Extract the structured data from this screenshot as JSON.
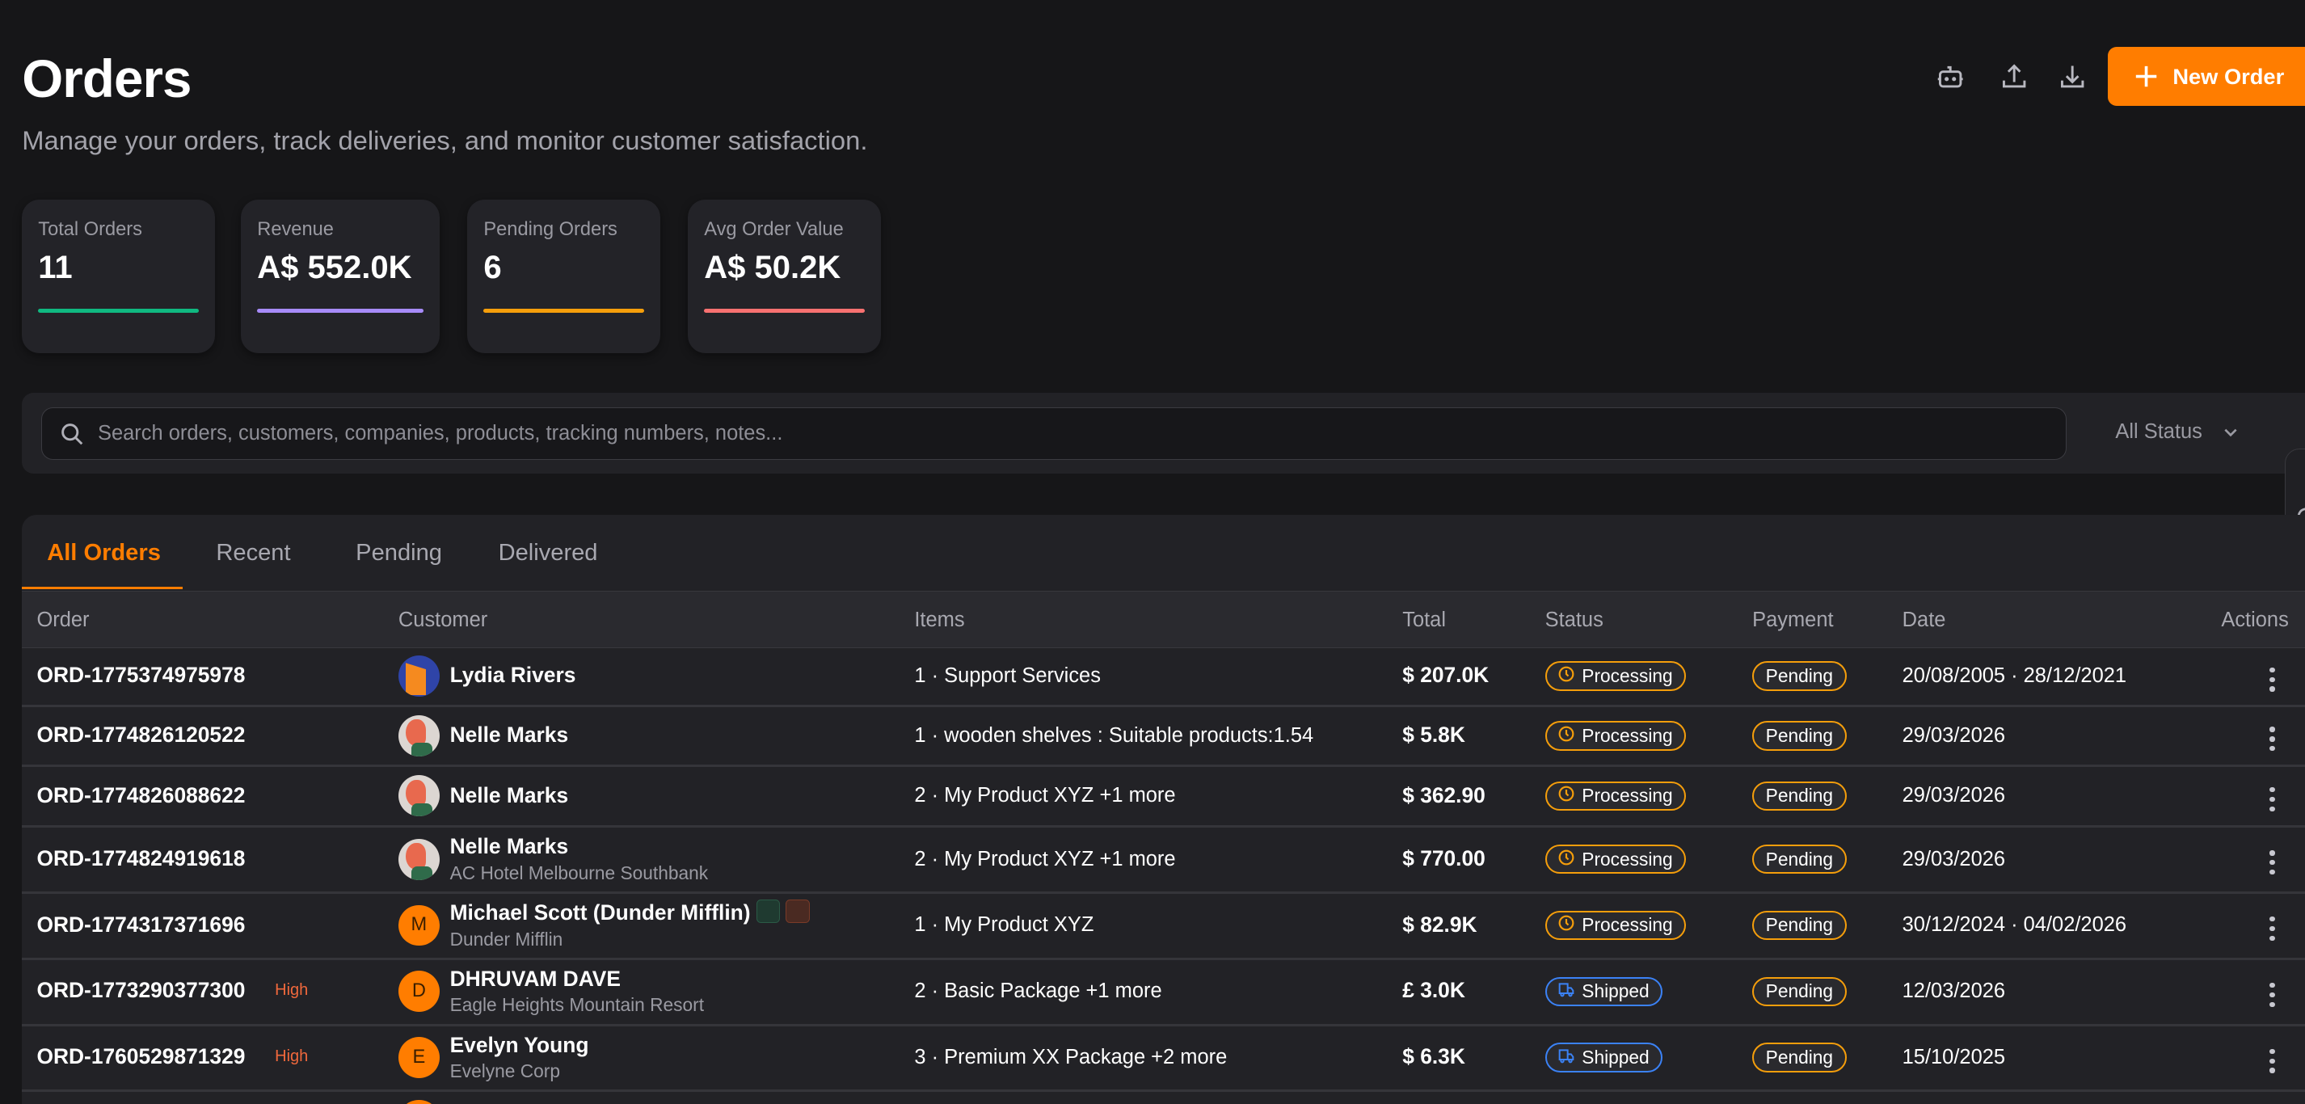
{
  "header": {
    "title": "Orders",
    "subtitle": "Manage your orders, track deliveries, and monitor customer satisfaction.",
    "new_order_label": "New Order",
    "icons": [
      "robot-icon",
      "upload-icon",
      "download-icon",
      "plus-icon"
    ]
  },
  "stats": [
    {
      "label": "Total Orders",
      "value": "11",
      "color": "#10b981"
    },
    {
      "label": "Revenue",
      "value": "A$ 552.0K",
      "color": "#a78bfa"
    },
    {
      "label": "Pending Orders",
      "value": "6",
      "color": "#f59e0b"
    },
    {
      "label": "Avg Order Value",
      "value": "A$ 50.2K",
      "color": "#f87171"
    }
  ],
  "search": {
    "placeholder": "Search orders, customers, companies, products, tracking numbers, notes...",
    "value": "",
    "status_filter": "All Status"
  },
  "tabs": [
    {
      "label": "All Orders",
      "active": true
    },
    {
      "label": "Recent"
    },
    {
      "label": "Pending"
    },
    {
      "label": "Delivered"
    }
  ],
  "columns": [
    "Order",
    "Customer",
    "Items",
    "Total",
    "Status",
    "Payment",
    "Date",
    "Actions"
  ],
  "colors": {
    "accent": "#ff7d00",
    "processing": "#f59e0b",
    "shipped": "#3b82f6",
    "pending": "#f59e0b",
    "high": "#f0683c"
  },
  "rows": [
    {
      "order": "ORD-1775374975978",
      "priority": "",
      "customer": "Lydia Rivers",
      "company": "",
      "avatar": "fox-image",
      "items": "1 · Support Services",
      "total": "$ 207.0K",
      "status": "Processing",
      "payment": "Pending",
      "date": "20/08/2005 · 28/12/2021"
    },
    {
      "order": "ORD-1774826120522",
      "priority": "",
      "customer": "Nelle Marks",
      "company": "",
      "avatar": "woman-image",
      "items": "1 · wooden shelves : Suitable products:1.54",
      "total": "$ 5.8K",
      "status": "Processing",
      "payment": "Pending",
      "date": "29/03/2026"
    },
    {
      "order": "ORD-1774826088622",
      "priority": "",
      "customer": "Nelle Marks",
      "company": "",
      "avatar": "woman-image",
      "items": "2 · My Product XYZ +1 more",
      "total": "$ 362.90",
      "status": "Processing",
      "payment": "Pending",
      "date": "29/03/2026"
    },
    {
      "order": "ORD-1774824919618",
      "priority": "",
      "customer": "Nelle Marks",
      "company": "AC Hotel Melbourne Southbank",
      "avatar": "woman-image",
      "items": "2 · My Product XYZ +1 more",
      "total": "$ 770.00",
      "status": "Processing",
      "payment": "Pending",
      "date": "29/03/2026"
    },
    {
      "order": "ORD-1774317371696",
      "priority": "",
      "customer": "Michael Scott (Dunder Mifflin)",
      "company": "Dunder Mifflin",
      "avatar": "M",
      "tags": [
        "verified-icon",
        "tag-icon"
      ],
      "items": "1 · My Product XYZ",
      "total": "$ 82.9K",
      "status": "Processing",
      "payment": "Pending",
      "date": "30/12/2024 · 04/02/2026"
    },
    {
      "order": "ORD-1773290377300",
      "priority": "High",
      "customer": "DHRUVAM DAVE",
      "company": "Eagle Heights Mountain Resort",
      "avatar": "D",
      "items": "2 · Basic Package +1 more",
      "total": "£ 3.0K",
      "status": "Shipped",
      "payment": "Pending",
      "date": "12/03/2026"
    },
    {
      "order": "ORD-1760529871329",
      "priority": "High",
      "customer": "Evelyn Young",
      "company": "Evelyne Corp",
      "avatar": "E",
      "items": "3 · Premium XX Package +2 more",
      "total": "$ 6.3K",
      "status": "Shipped",
      "payment": "Pending",
      "date": "15/10/2025"
    }
  ]
}
